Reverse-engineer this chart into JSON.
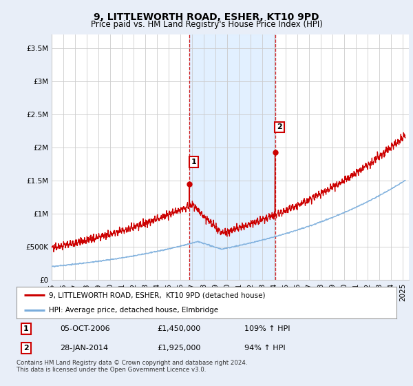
{
  "title": "9, LITTLEWORTH ROAD, ESHER, KT10 9PD",
  "subtitle": "Price paid vs. HM Land Registry's House Price Index (HPI)",
  "xlim_start": 1995.0,
  "xlim_end": 2025.5,
  "ylim_min": 0,
  "ylim_max": 3700000,
  "yticks": [
    0,
    500000,
    1000000,
    1500000,
    2000000,
    2500000,
    3000000,
    3500000
  ],
  "ytick_labels": [
    "£0",
    "£500K",
    "£1M",
    "£1.5M",
    "£2M",
    "£2.5M",
    "£3M",
    "£3.5M"
  ],
  "purchase1_x": 2006.76,
  "purchase1_y": 1450000,
  "purchase1_label": "1",
  "purchase2_x": 2014.08,
  "purchase2_y": 1925000,
  "purchase2_label": "2",
  "red_line_color": "#cc0000",
  "blue_line_color": "#7aaddc",
  "shading_color": "#ddeeff",
  "background_color": "#e8eef8",
  "plot_bg_color": "#ffffff",
  "grid_color": "#cccccc",
  "legend_label_red": "9, LITTLEWORTH ROAD, ESHER,  KT10 9PD (detached house)",
  "legend_label_blue": "HPI: Average price, detached house, Elmbridge",
  "table_row1": [
    "1",
    "05-OCT-2006",
    "£1,450,000",
    "109% ↑ HPI"
  ],
  "table_row2": [
    "2",
    "28-JAN-2014",
    "£1,925,000",
    "94% ↑ HPI"
  ],
  "footer": "Contains HM Land Registry data © Crown copyright and database right 2024.\nThis data is licensed under the Open Government Licence v3.0.",
  "title_fontsize": 10,
  "subtitle_fontsize": 8.5,
  "tick_fontsize": 7.5
}
